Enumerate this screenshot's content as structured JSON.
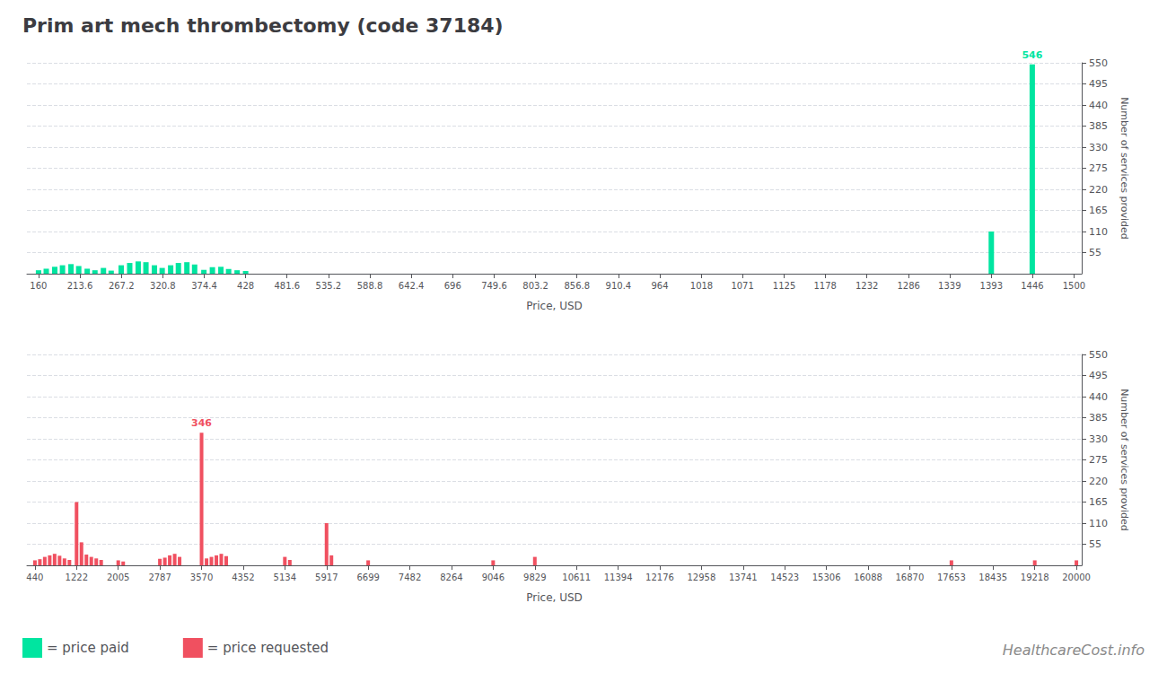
{
  "chart_data": [
    {
      "type": "bar",
      "title": "Prim art mech thrombectomy (code 37184)",
      "x_label": "Price, USD",
      "y_label": "Number of services provided",
      "x": [
        160,
        170,
        181,
        191,
        202,
        212,
        223,
        233,
        244,
        254,
        267,
        278,
        289,
        299,
        310,
        320,
        331,
        341,
        352,
        362,
        374,
        385,
        396,
        406,
        417,
        428,
        1393,
        1446
      ],
      "series": [
        {
          "name": "= price paid",
          "color": "#00e5a0",
          "values": [
            9,
            13,
            18,
            22,
            25,
            20,
            13,
            9,
            15,
            8,
            22,
            28,
            32,
            30,
            22,
            15,
            22,
            28,
            30,
            24,
            10,
            17,
            18,
            12,
            9,
            7,
            110,
            546
          ]
        }
      ],
      "xlim": [
        145,
        1510
      ],
      "xticks": [
        160,
        213.6,
        267.2,
        320.8,
        374.4,
        428,
        481.6,
        535.2,
        588.8,
        642.4,
        696,
        749.6,
        803.2,
        856.8,
        910.4,
        964,
        1018,
        1071,
        1125,
        1178,
        1232,
        1286,
        1339,
        1393,
        1446,
        1500
      ],
      "ylim": [
        0,
        550
      ],
      "yticks": [
        55,
        110,
        165,
        220,
        275,
        330,
        385,
        440,
        495,
        550
      ],
      "grid": true,
      "annotations": [
        {
          "text": "546",
          "x": 1446,
          "y": 546,
          "color": "#00e5a0"
        }
      ]
    },
    {
      "type": "bar",
      "x_label": "Price, USD",
      "y_label": "Number of services provided",
      "x": [
        440,
        533,
        625,
        718,
        810,
        903,
        995,
        1088,
        1222,
        1314,
        1407,
        1499,
        1592,
        1684,
        2005,
        2098,
        2787,
        2880,
        2972,
        3065,
        3157,
        3570,
        3663,
        3755,
        3848,
        3940,
        4033,
        5134,
        5227,
        5917,
        6009,
        6699,
        9046,
        9829,
        17653,
        19218,
        20000
      ],
      "series": [
        {
          "name": "= price requested",
          "color": "#f05060",
          "values": [
            13,
            16,
            22,
            26,
            30,
            25,
            18,
            14,
            165,
            60,
            28,
            22,
            18,
            14,
            13,
            10,
            17,
            20,
            26,
            30,
            22,
            346,
            18,
            22,
            26,
            30,
            24,
            22,
            14,
            110,
            26,
            13,
            13,
            22,
            13,
            13,
            13
          ]
        }
      ],
      "xlim": [
        290,
        20100
      ],
      "xticks": [
        440,
        1222,
        2005,
        2787,
        3570,
        4352,
        5134,
        5917,
        6699,
        7482,
        8264,
        9046,
        9829,
        10611,
        11394,
        12176,
        12958,
        13741,
        14523,
        15306,
        16088,
        16870,
        17653,
        18435,
        19218,
        20000
      ],
      "ylim": [
        0,
        550
      ],
      "yticks": [
        55,
        110,
        165,
        220,
        275,
        330,
        385,
        440,
        495,
        550
      ],
      "grid": true,
      "legend": "lower left",
      "annotations": [
        {
          "text": "346",
          "x": 3570,
          "y": 346,
          "color": "#f05060"
        },
        {
          "text": "HealthcareCost.info"
        }
      ]
    }
  ]
}
